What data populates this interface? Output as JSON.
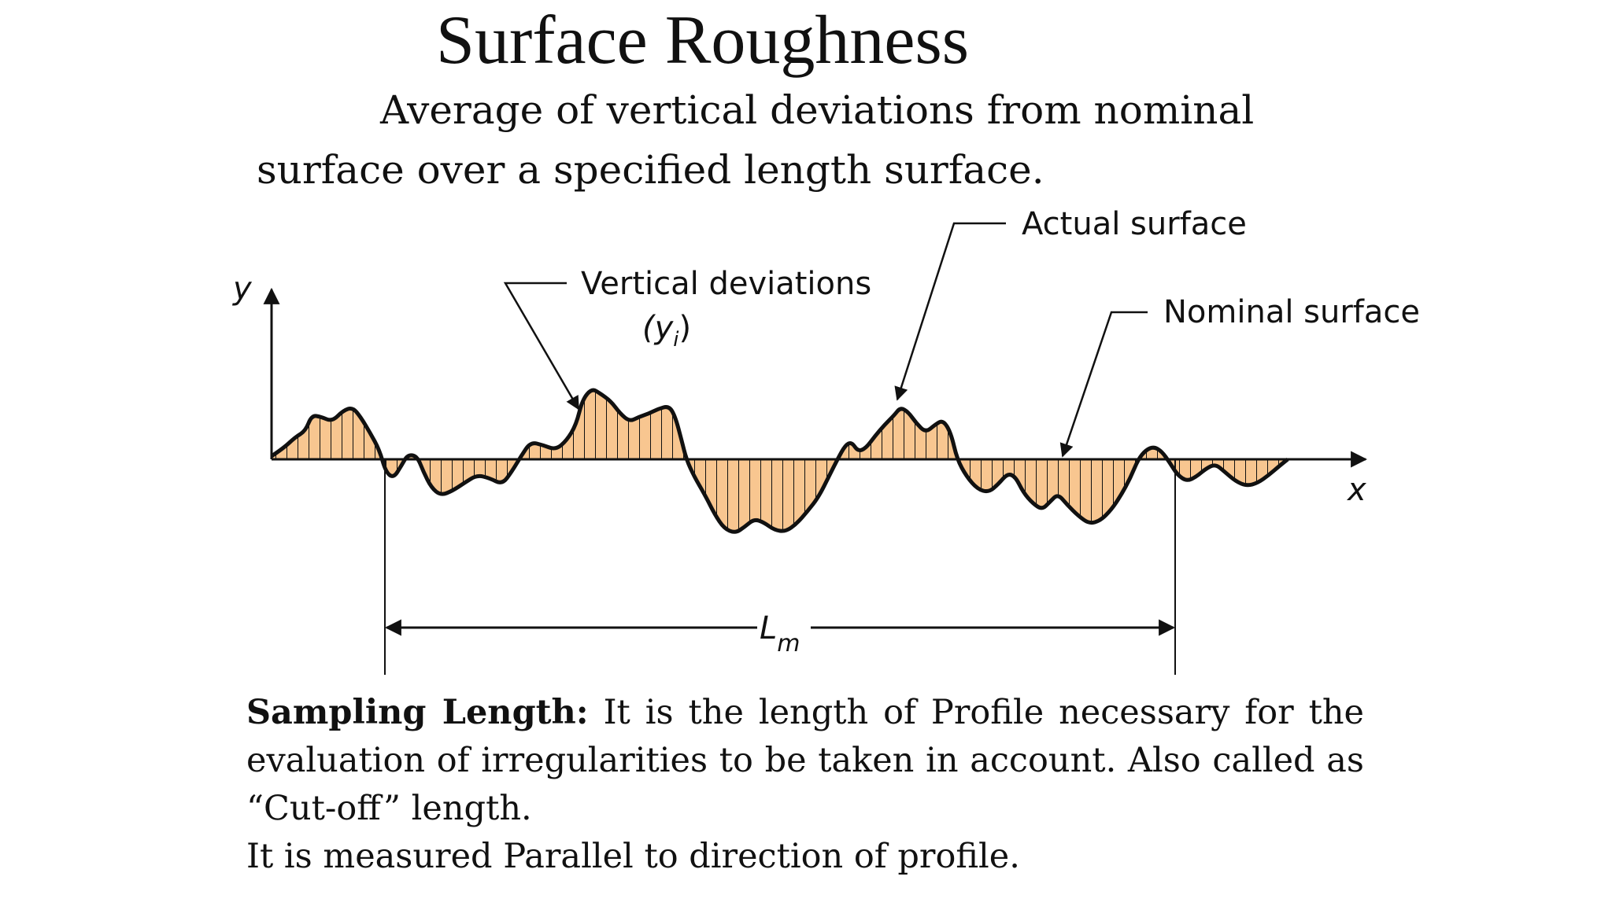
{
  "title": "Surface Roughness",
  "subtitle_line1": "Average of vertical deviations from nominal",
  "subtitle_line2": "surface over a specified length surface.",
  "diagram": {
    "axis_y": "y",
    "axis_x": "x",
    "label_vertical_deviations": "Vertical deviations",
    "label_yi_open": "(y",
    "label_yi_sub": "i",
    "label_yi_close": ")",
    "label_actual_surface": "Actual surface",
    "label_nominal_surface": "Nominal surface",
    "label_lm_main": "L",
    "label_lm_sub": "m",
    "fill_color": "#f8c690",
    "line_color": "#111111"
  },
  "description": {
    "term": "Sampling Length:",
    "definition": " It is the length of Profile necessary for the evaluation of irregularities to be taken in account. Also called as “Cut-off” length.",
    "note": "It is measured Parallel to direction of profile."
  }
}
